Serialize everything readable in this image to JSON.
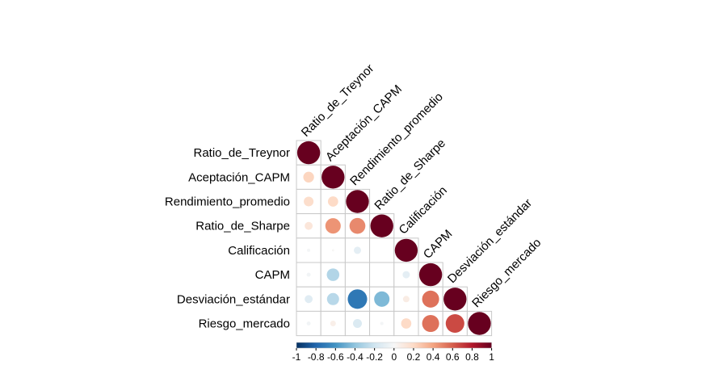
{
  "chart_data": {
    "type": "heatmap",
    "style": "corrplot-circle-lower",
    "variables": [
      "Ratio_de_Treynor",
      "Aceptación_CAPM",
      "Rendimiento_promedio",
      "Ratio_de_Sharpe",
      "Calificación",
      "CAPM",
      "Desviación_estándar",
      "Riesgo_mercado"
    ],
    "matrix": [
      [
        1.0
      ],
      [
        0.22,
        1.0
      ],
      [
        0.18,
        0.2,
        1.0
      ],
      [
        0.12,
        0.45,
        0.48,
        1.0
      ],
      [
        -0.02,
        0.01,
        -0.1,
        0.0,
        1.0
      ],
      [
        -0.03,
        -0.3,
        0.0,
        0.0,
        -0.1,
        1.0
      ],
      [
        -0.12,
        -0.28,
        -0.72,
        -0.45,
        0.08,
        0.55,
        1.0
      ],
      [
        -0.03,
        0.06,
        -0.15,
        -0.02,
        0.2,
        0.55,
        0.66,
        1.0
      ]
    ],
    "colorbar": {
      "min": -1,
      "max": 1,
      "tick_labels": [
        "-1",
        "-0.8",
        "-0.6",
        "-0.4",
        "-0.2",
        "0",
        "0.2",
        "0.4",
        "0.6",
        "0.8",
        "1"
      ],
      "negative_color": "#053061",
      "zero_color": "#f7f7f7",
      "positive_color": "#67001f"
    },
    "grid": true,
    "legend_position": "bottom"
  }
}
